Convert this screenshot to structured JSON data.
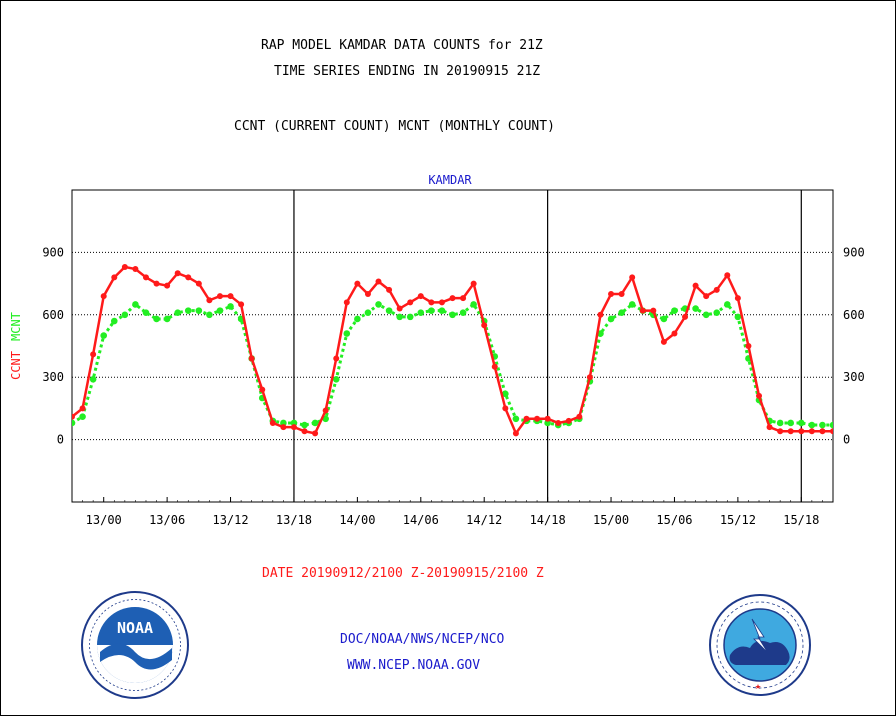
{
  "header": {
    "title": "RAP MODEL KAMDAR DATA COUNTS for 21Z",
    "subtitle": "TIME SERIES ENDING IN 20190915 21Z",
    "description": "CCNT (CURRENT COUNT) MCNT (MONTHLY COUNT)"
  },
  "footer": {
    "date_range": "DATE 20190912/2100 Z-20190915/2100 Z",
    "org_line": "DOC/NOAA/NWS/NCEP/NCO",
    "url": "WWW.NCEP.NOAA.GOV"
  },
  "logos": {
    "left": {
      "icon": "noaa-logo",
      "text": "NOAA",
      "ring_text": "NATIONAL OCEANIC AND ATMOSPHERIC ADMINISTRATION · U.S. DEPARTMENT OF COMMERCE"
    },
    "right": {
      "icon": "nws-logo",
      "ring_text": "NATIONAL WEATHER SERVICE"
    }
  },
  "colors": {
    "ccnt": "#ff1a1a",
    "mcnt": "#22ee22",
    "station_label": "#1a1acc",
    "date_label": "#ff1a1a",
    "footer_links": "#1a1acc"
  },
  "chart_data": {
    "type": "line",
    "title": "KAMDAR",
    "ylabel_series": [
      "CCNT",
      "MCNT"
    ],
    "ylim": [
      -300,
      1200
    ],
    "xlim_hours": [
      0,
      72
    ],
    "yticks": [
      0,
      300,
      600,
      900
    ],
    "xticks": [
      {
        "h": 3,
        "label": "13/00"
      },
      {
        "h": 9,
        "label": "13/06"
      },
      {
        "h": 15,
        "label": "13/12"
      },
      {
        "h": 21,
        "label": "13/18"
      },
      {
        "h": 27,
        "label": "14/00"
      },
      {
        "h": 33,
        "label": "14/06"
      },
      {
        "h": 39,
        "label": "14/12"
      },
      {
        "h": 45,
        "label": "14/18"
      },
      {
        "h": 51,
        "label": "15/00"
      },
      {
        "h": 57,
        "label": "15/06"
      },
      {
        "h": 63,
        "label": "15/12"
      },
      {
        "h": 69,
        "label": "15/18"
      }
    ],
    "day_boundaries_hours": [
      21,
      45,
      69
    ],
    "grid": "horizontal",
    "series": [
      {
        "name": "CCNT",
        "values": [
          110,
          150,
          410,
          690,
          780,
          830,
          820,
          780,
          750,
          740,
          800,
          780,
          750,
          670,
          690,
          690,
          650,
          390,
          240,
          80,
          60,
          60,
          40,
          30,
          140,
          390,
          660,
          750,
          700,
          760,
          720,
          630,
          660,
          690,
          660,
          660,
          680,
          680,
          750,
          550,
          350,
          150,
          30,
          100,
          100,
          100,
          80,
          90,
          110,
          300,
          600,
          700,
          700,
          780,
          620,
          620,
          470,
          510,
          590,
          740,
          690,
          720,
          790,
          680,
          450,
          210,
          60,
          40,
          40,
          40,
          40,
          40,
          40
        ]
      },
      {
        "name": "MCNT",
        "values": [
          80,
          110,
          290,
          500,
          570,
          600,
          650,
          610,
          580,
          580,
          610,
          620,
          620,
          600,
          620,
          640,
          580,
          390,
          200,
          90,
          80,
          80,
          70,
          80,
          100,
          290,
          510,
          580,
          610,
          650,
          620,
          590,
          590,
          610,
          620,
          620,
          600,
          610,
          650,
          570,
          400,
          220,
          100,
          90,
          90,
          80,
          70,
          80,
          100,
          280,
          510,
          580,
          610,
          650,
          620,
          600,
          580,
          620,
          630,
          630,
          600,
          610,
          650,
          590,
          390,
          190,
          90,
          80,
          80,
          80,
          70,
          70,
          70
        ]
      }
    ]
  }
}
